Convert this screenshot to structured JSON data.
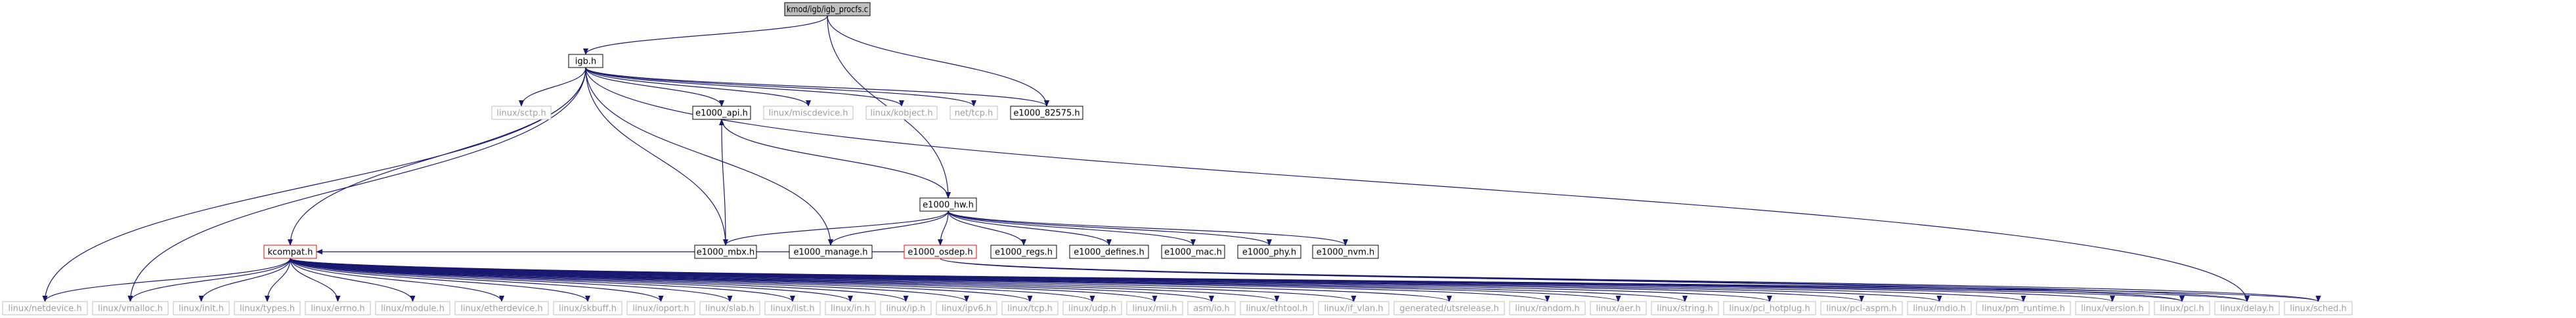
{
  "title": "",
  "colors": {
    "edge": "#191970",
    "text_active": "#000000",
    "text_grey": "#a0a0a0",
    "border_black": "#000000",
    "border_grey": "#bfbfbf",
    "border_red": "#ff0000",
    "root_fill": "#bfbfbf"
  },
  "nodes": [
    {
      "id": "root",
      "label": "kmod/igb/igb_procfs.c",
      "style": "root"
    },
    {
      "id": "igb",
      "label": "igb.h",
      "style": "black"
    },
    {
      "id": "sctp",
      "label": "linux/sctp.h",
      "style": "grey"
    },
    {
      "id": "e1000_api",
      "label": "e1000_api.h",
      "style": "black"
    },
    {
      "id": "miscdevice",
      "label": "linux/miscdevice.h",
      "style": "grey"
    },
    {
      "id": "kobject",
      "label": "linux/kobject.h",
      "style": "grey"
    },
    {
      "id": "nettcp",
      "label": "net/tcp.h",
      "style": "grey"
    },
    {
      "id": "e1000_82575",
      "label": "e1000_82575.h",
      "style": "black"
    },
    {
      "id": "e1000_hw",
      "label": "e1000_hw.h",
      "style": "black"
    },
    {
      "id": "e1000_mbx",
      "label": "e1000_mbx.h",
      "style": "black"
    },
    {
      "id": "e1000_manage",
      "label": "e1000_manage.h",
      "style": "black"
    },
    {
      "id": "e1000_osdep",
      "label": "e1000_osdep.h",
      "style": "red"
    },
    {
      "id": "e1000_regs",
      "label": "e1000_regs.h",
      "style": "black"
    },
    {
      "id": "e1000_defines",
      "label": "e1000_defines.h",
      "style": "black"
    },
    {
      "id": "e1000_mac",
      "label": "e1000_mac.h",
      "style": "black"
    },
    {
      "id": "e1000_phy",
      "label": "e1000_phy.h",
      "style": "black"
    },
    {
      "id": "e1000_nvm",
      "label": "e1000_nvm.h",
      "style": "black"
    },
    {
      "id": "kcompat",
      "label": "kcompat.h",
      "style": "red"
    },
    {
      "id": "netdevice",
      "label": "linux/netdevice.h",
      "style": "grey"
    },
    {
      "id": "vmalloc",
      "label": "linux/vmalloc.h",
      "style": "grey"
    },
    {
      "id": "init",
      "label": "linux/init.h",
      "style": "grey"
    },
    {
      "id": "types",
      "label": "linux/types.h",
      "style": "grey"
    },
    {
      "id": "errno",
      "label": "linux/errno.h",
      "style": "grey"
    },
    {
      "id": "module",
      "label": "linux/module.h",
      "style": "grey"
    },
    {
      "id": "etherdevice",
      "label": "linux/etherdevice.h",
      "style": "grey"
    },
    {
      "id": "skbuff",
      "label": "linux/skbuff.h",
      "style": "grey"
    },
    {
      "id": "ioport",
      "label": "linux/ioport.h",
      "style": "grey"
    },
    {
      "id": "slab",
      "label": "linux/slab.h",
      "style": "grey"
    },
    {
      "id": "list",
      "label": "linux/list.h",
      "style": "grey"
    },
    {
      "id": "in",
      "label": "linux/in.h",
      "style": "grey"
    },
    {
      "id": "ip",
      "label": "linux/ip.h",
      "style": "grey"
    },
    {
      "id": "ipv6",
      "label": "linux/ipv6.h",
      "style": "grey"
    },
    {
      "id": "tcp",
      "label": "linux/tcp.h",
      "style": "grey"
    },
    {
      "id": "udp",
      "label": "linux/udp.h",
      "style": "grey"
    },
    {
      "id": "mii",
      "label": "linux/mii.h",
      "style": "grey"
    },
    {
      "id": "asmio",
      "label": "asm/io.h",
      "style": "grey"
    },
    {
      "id": "ethtool",
      "label": "linux/ethtool.h",
      "style": "grey"
    },
    {
      "id": "if_vlan",
      "label": "linux/if_vlan.h",
      "style": "grey"
    },
    {
      "id": "utsrelease",
      "label": "generated/utsrelease.h",
      "style": "grey"
    },
    {
      "id": "random",
      "label": "linux/random.h",
      "style": "grey"
    },
    {
      "id": "aer",
      "label": "linux/aer.h",
      "style": "grey"
    },
    {
      "id": "string",
      "label": "linux/string.h",
      "style": "grey"
    },
    {
      "id": "pci_hotplug",
      "label": "linux/pci_hotplug.h",
      "style": "grey"
    },
    {
      "id": "pci_aspm",
      "label": "linux/pci-aspm.h",
      "style": "grey"
    },
    {
      "id": "mdio",
      "label": "linux/mdio.h",
      "style": "grey"
    },
    {
      "id": "pm_runtime",
      "label": "linux/pm_runtime.h",
      "style": "grey"
    },
    {
      "id": "version",
      "label": "linux/version.h",
      "style": "grey"
    },
    {
      "id": "pci",
      "label": "linux/pci.h",
      "style": "grey"
    },
    {
      "id": "delay",
      "label": "linux/delay.h",
      "style": "grey"
    },
    {
      "id": "sched",
      "label": "linux/sched.h",
      "style": "grey"
    }
  ],
  "edges": [
    [
      "root",
      "igb"
    ],
    [
      "root",
      "e1000_82575"
    ],
    [
      "root",
      "e1000_hw"
    ],
    [
      "igb",
      "sctp"
    ],
    [
      "igb",
      "e1000_api"
    ],
    [
      "igb",
      "miscdevice"
    ],
    [
      "igb",
      "kobject"
    ],
    [
      "igb",
      "nettcp"
    ],
    [
      "igb",
      "e1000_82575"
    ],
    [
      "igb",
      "e1000_mbx"
    ],
    [
      "igb",
      "e1000_manage"
    ],
    [
      "igb",
      "kcompat"
    ],
    [
      "igb",
      "netdevice"
    ],
    [
      "igb",
      "vmalloc"
    ],
    [
      "igb",
      "delay"
    ],
    [
      "e1000_api",
      "e1000_hw"
    ],
    [
      "e1000_mbx",
      "e1000_api"
    ],
    [
      "e1000_hw",
      "e1000_mbx"
    ],
    [
      "e1000_hw",
      "e1000_manage"
    ],
    [
      "e1000_hw",
      "e1000_osdep"
    ],
    [
      "e1000_hw",
      "e1000_regs"
    ],
    [
      "e1000_hw",
      "e1000_defines"
    ],
    [
      "e1000_hw",
      "e1000_mac"
    ],
    [
      "e1000_hw",
      "e1000_phy"
    ],
    [
      "e1000_hw",
      "e1000_nvm"
    ],
    [
      "e1000_osdep",
      "kcompat"
    ],
    [
      "e1000_osdep",
      "pci"
    ],
    [
      "e1000_osdep",
      "delay"
    ],
    [
      "e1000_osdep",
      "sched"
    ],
    [
      "kcompat",
      "netdevice"
    ],
    [
      "kcompat",
      "vmalloc"
    ],
    [
      "kcompat",
      "init"
    ],
    [
      "kcompat",
      "types"
    ],
    [
      "kcompat",
      "errno"
    ],
    [
      "kcompat",
      "module"
    ],
    [
      "kcompat",
      "etherdevice"
    ],
    [
      "kcompat",
      "skbuff"
    ],
    [
      "kcompat",
      "ioport"
    ],
    [
      "kcompat",
      "slab"
    ],
    [
      "kcompat",
      "list"
    ],
    [
      "kcompat",
      "in"
    ],
    [
      "kcompat",
      "ip"
    ],
    [
      "kcompat",
      "ipv6"
    ],
    [
      "kcompat",
      "tcp"
    ],
    [
      "kcompat",
      "udp"
    ],
    [
      "kcompat",
      "mii"
    ],
    [
      "kcompat",
      "asmio"
    ],
    [
      "kcompat",
      "ethtool"
    ],
    [
      "kcompat",
      "if_vlan"
    ],
    [
      "kcompat",
      "utsrelease"
    ],
    [
      "kcompat",
      "random"
    ],
    [
      "kcompat",
      "aer"
    ],
    [
      "kcompat",
      "string"
    ],
    [
      "kcompat",
      "pci_hotplug"
    ],
    [
      "kcompat",
      "pci_aspm"
    ],
    [
      "kcompat",
      "mdio"
    ],
    [
      "kcompat",
      "pm_runtime"
    ],
    [
      "kcompat",
      "version"
    ],
    [
      "kcompat",
      "pci"
    ],
    [
      "kcompat",
      "delay"
    ],
    [
      "kcompat",
      "sched"
    ]
  ]
}
